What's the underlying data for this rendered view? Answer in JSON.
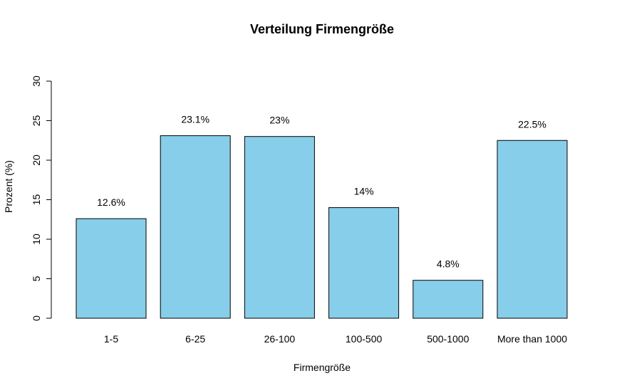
{
  "chart_data": {
    "type": "bar",
    "title": "Verteilung Firmengröße",
    "xlabel": "Firmengröße",
    "ylabel": "Prozent (%)",
    "categories": [
      "1-5",
      "6-25",
      "26-100",
      "100-500",
      "500-1000",
      "More than 1000"
    ],
    "values": [
      12.6,
      23.1,
      23.0,
      14.0,
      4.8,
      22.5
    ],
    "data_labels": [
      "12.6%",
      "23.1%",
      "23%",
      "14%",
      "4.8%",
      "22.5%"
    ],
    "ylim": [
      0,
      30
    ],
    "yticks": [
      0,
      5,
      10,
      15,
      20,
      25,
      30
    ],
    "grid": false,
    "legend": "none",
    "bar_color": "#87CEEB",
    "bar_border_color": "#000000"
  }
}
